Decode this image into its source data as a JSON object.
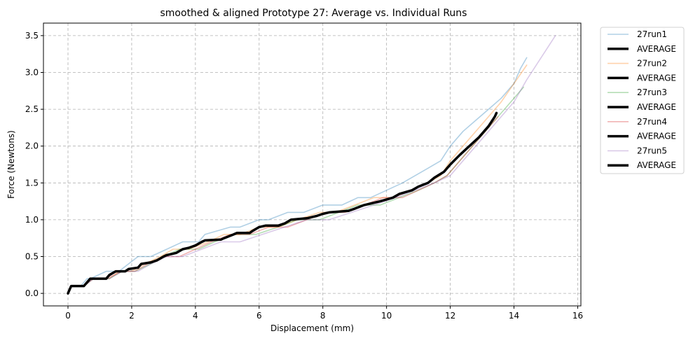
{
  "chart_data": {
    "type": "line",
    "title": "smoothed & aligned Prototype 27: Average vs. Individual Runs",
    "xlabel": "Displacement (mm)",
    "ylabel": "Force (Newtons)",
    "xlim": [
      -0.77,
      16.1
    ],
    "ylim": [
      -0.17,
      3.67
    ],
    "xticks": [
      0,
      2,
      4,
      6,
      8,
      10,
      12,
      14,
      16
    ],
    "yticks": [
      0.0,
      0.5,
      1.0,
      1.5,
      2.0,
      2.5,
      3.0,
      3.5
    ],
    "xtick_labels": [
      "0",
      "2",
      "4",
      "6",
      "8",
      "10",
      "12",
      "14",
      "16"
    ],
    "ytick_labels": [
      "0.0",
      "0.5",
      "1.0",
      "1.5",
      "2.0",
      "2.5",
      "3.0",
      "3.5"
    ],
    "grid": true,
    "legend_position": "outside-right",
    "legend": [
      "27run1",
      "AVERAGE",
      "27run2",
      "AVERAGE",
      "27run3",
      "AVERAGE",
      "27run4",
      "AVERAGE",
      "27run5",
      "AVERAGE"
    ],
    "series": [
      {
        "name": "27run1",
        "color": "#1f77b4",
        "x": [
          0,
          0.1,
          0.4,
          0.6,
          0.7,
          1.2,
          1.6,
          1.9,
          2.2,
          2.6,
          3.1,
          3.6,
          4.1,
          4.3,
          5.1,
          5.4,
          6.0,
          6.3,
          6.9,
          7.4,
          8.0,
          8.6,
          9.1,
          9.5,
          10.0,
          10.5,
          10.9,
          11.3,
          11.7,
          12.0,
          12.4,
          12.8,
          13.2,
          13.6,
          14.0,
          14.2,
          14.4
        ],
        "y": [
          0.0,
          0.1,
          0.1,
          0.2,
          0.2,
          0.3,
          0.3,
          0.4,
          0.5,
          0.5,
          0.6,
          0.7,
          0.7,
          0.8,
          0.9,
          0.9,
          1.0,
          1.0,
          1.1,
          1.1,
          1.2,
          1.2,
          1.3,
          1.3,
          1.4,
          1.5,
          1.6,
          1.7,
          1.8,
          2.0,
          2.2,
          2.35,
          2.5,
          2.65,
          2.85,
          3.05,
          3.2
        ]
      },
      {
        "name": "27run2",
        "color": "#ff7f0e",
        "x": [
          0,
          0.1,
          0.5,
          0.7,
          1.3,
          1.6,
          2.0,
          2.4,
          2.9,
          3.3,
          3.8,
          4.4,
          4.9,
          5.4,
          6.0,
          6.6,
          7.2,
          7.9,
          8.4,
          9.0,
          9.6,
          10.2,
          10.8,
          11.3,
          11.7,
          12.0,
          12.4,
          12.8,
          13.2,
          13.6,
          14.0,
          14.4
        ],
        "y": [
          0.0,
          0.1,
          0.1,
          0.2,
          0.2,
          0.3,
          0.3,
          0.4,
          0.5,
          0.6,
          0.6,
          0.7,
          0.8,
          0.8,
          0.9,
          0.9,
          1.0,
          1.1,
          1.1,
          1.2,
          1.3,
          1.3,
          1.4,
          1.5,
          1.6,
          1.8,
          2.0,
          2.2,
          2.4,
          2.6,
          2.85,
          3.1
        ]
      },
      {
        "name": "27run3",
        "color": "#2ca02c",
        "x": [
          0,
          0.1,
          0.5,
          0.8,
          1.3,
          1.7,
          2.1,
          2.6,
          3.0,
          3.5,
          4.1,
          4.6,
          5.2,
          5.9,
          6.6,
          7.2,
          7.9,
          8.5,
          9.1,
          9.8,
          10.4,
          11.0,
          11.5,
          11.9,
          12.3,
          12.7,
          13.1,
          13.5,
          13.9,
          14.3
        ],
        "y": [
          0.0,
          0.1,
          0.1,
          0.2,
          0.2,
          0.3,
          0.3,
          0.4,
          0.5,
          0.6,
          0.6,
          0.7,
          0.8,
          0.8,
          0.9,
          1.0,
          1.0,
          1.1,
          1.2,
          1.2,
          1.3,
          1.4,
          1.5,
          1.6,
          1.8,
          2.0,
          2.2,
          2.4,
          2.6,
          2.8
        ]
      },
      {
        "name": "27run4",
        "color": "#d62728",
        "x": [
          0,
          0.1,
          0.5,
          0.8,
          1.2,
          1.7,
          2.1,
          2.5,
          3.0,
          3.5,
          4.0,
          4.5,
          5.1,
          5.7,
          6.3,
          6.9,
          7.5,
          8.1,
          8.7,
          9.3,
          9.9,
          10.5,
          11.0,
          11.5,
          11.9,
          12.3,
          12.7,
          13.1,
          13.5
        ],
        "y": [
          0.0,
          0.1,
          0.1,
          0.2,
          0.2,
          0.3,
          0.3,
          0.4,
          0.5,
          0.5,
          0.6,
          0.7,
          0.8,
          0.8,
          0.9,
          0.9,
          1.0,
          1.1,
          1.1,
          1.2,
          1.3,
          1.3,
          1.4,
          1.5,
          1.6,
          1.8,
          2.0,
          2.2,
          2.4
        ]
      },
      {
        "name": "27run5",
        "color": "#9467bd",
        "x": [
          0,
          0.1,
          0.5,
          0.8,
          1.3,
          1.7,
          2.2,
          2.6,
          3.1,
          3.6,
          4.2,
          4.8,
          5.4,
          6.1,
          6.8,
          7.5,
          8.2,
          8.9,
          9.6,
          10.3,
          10.9,
          11.5,
          12.0,
          12.4,
          12.8,
          13.2,
          13.6,
          14.0,
          14.4,
          14.7,
          15.0,
          15.3
        ],
        "y": [
          0.0,
          0.1,
          0.1,
          0.2,
          0.2,
          0.3,
          0.3,
          0.4,
          0.5,
          0.5,
          0.6,
          0.7,
          0.7,
          0.8,
          0.9,
          1.0,
          1.0,
          1.1,
          1.2,
          1.3,
          1.4,
          1.5,
          1.6,
          1.8,
          2.0,
          2.2,
          2.4,
          2.6,
          2.9,
          3.1,
          3.3,
          3.5
        ]
      },
      {
        "name": "AVERAGE",
        "color": "#000000",
        "x": [
          0,
          0.1,
          0.2,
          0.5,
          0.6,
          0.7,
          1.2,
          1.3,
          1.5,
          1.8,
          1.9,
          2.2,
          2.3,
          2.6,
          2.8,
          3.0,
          3.1,
          3.4,
          3.6,
          3.8,
          4.0,
          4.2,
          4.3,
          4.8,
          4.9,
          5.2,
          5.3,
          5.7,
          5.8,
          6.0,
          6.2,
          6.6,
          6.8,
          7.0,
          7.5,
          7.8,
          8.0,
          8.2,
          8.8,
          9.0,
          9.3,
          9.6,
          9.8,
          10.2,
          10.4,
          10.8,
          11.0,
          11.3,
          11.5,
          11.8,
          12.0,
          12.3,
          12.6,
          12.9,
          13.2,
          13.4,
          13.45
        ],
        "y": [
          0.0,
          0.1,
          0.1,
          0.1,
          0.15,
          0.2,
          0.2,
          0.25,
          0.3,
          0.3,
          0.33,
          0.35,
          0.4,
          0.42,
          0.45,
          0.5,
          0.52,
          0.55,
          0.6,
          0.62,
          0.65,
          0.7,
          0.72,
          0.73,
          0.75,
          0.8,
          0.82,
          0.82,
          0.85,
          0.9,
          0.92,
          0.92,
          0.95,
          1.0,
          1.02,
          1.05,
          1.08,
          1.1,
          1.12,
          1.15,
          1.2,
          1.23,
          1.25,
          1.3,
          1.35,
          1.4,
          1.45,
          1.5,
          1.57,
          1.65,
          1.75,
          1.88,
          2.0,
          2.12,
          2.27,
          2.4,
          2.45
        ]
      }
    ]
  }
}
